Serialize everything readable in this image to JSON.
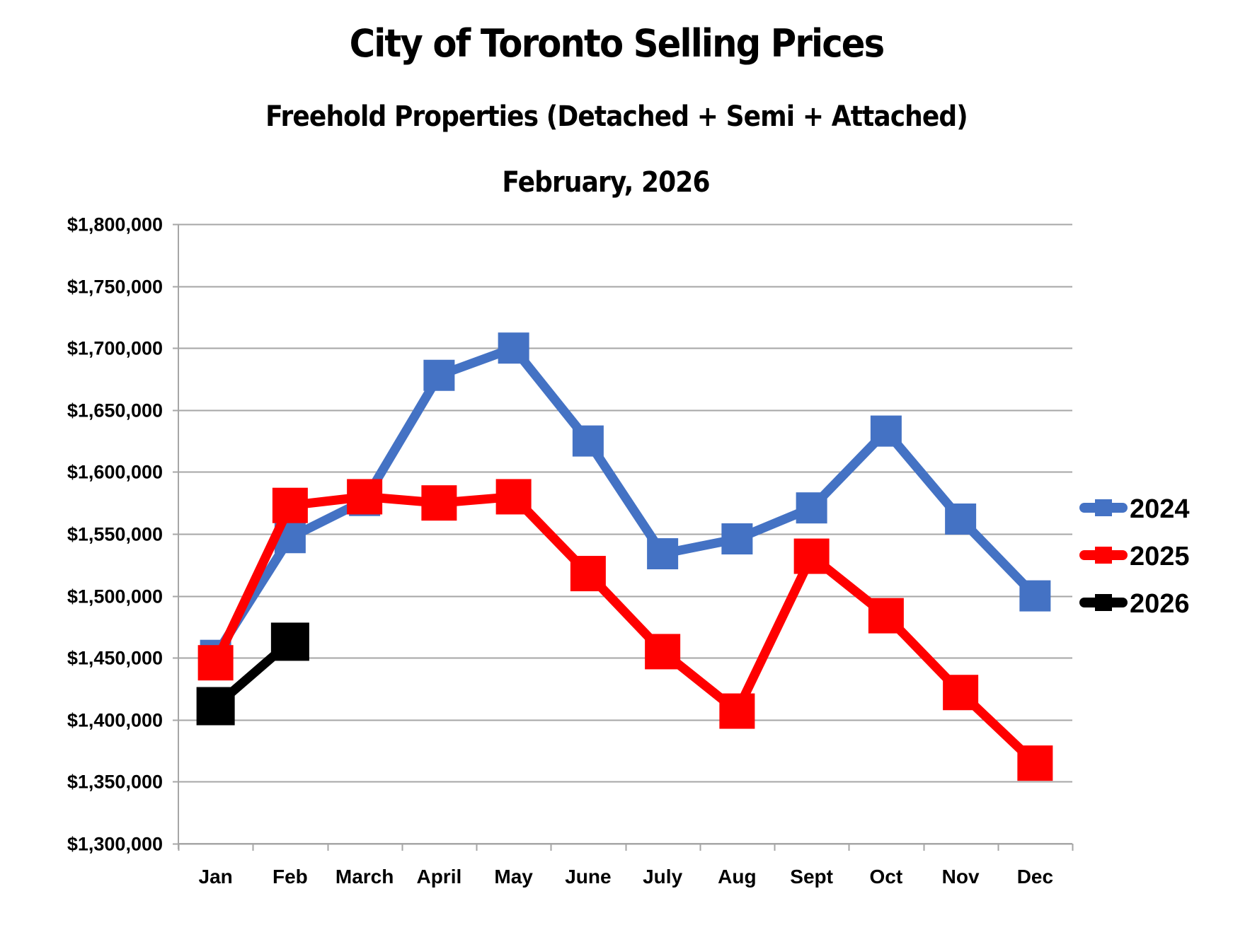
{
  "chart_data": {
    "type": "line",
    "title": "City of Toronto Selling Prices",
    "subtitle": "Freehold Properties (Detached + Semi + Attached)",
    "date_label": "February, 2026",
    "xlabel": "",
    "ylabel": "",
    "categories": [
      "Jan",
      "Feb",
      "March",
      "April",
      "May",
      "June",
      "July",
      "Aug",
      "Sept",
      "Oct",
      "Nov",
      "Dec"
    ],
    "ylim": [
      1300000,
      1800000
    ],
    "yticks": [
      1300000,
      1350000,
      1400000,
      1450000,
      1500000,
      1550000,
      1600000,
      1650000,
      1700000,
      1750000,
      1800000
    ],
    "ytick_labels": [
      "$1,300,000",
      "$1,350,000",
      "$1,400,000",
      "$1,450,000",
      "$1,500,000",
      "$1,550,000",
      "$1,600,000",
      "$1,650,000",
      "$1,700,000",
      "$1,750,000",
      "$1,800,000"
    ],
    "grid": true,
    "legend_position": "right",
    "series": [
      {
        "name": "2024",
        "color": "#4472C4",
        "values": [
          1452000,
          1547000,
          1577000,
          1678000,
          1700000,
          1625000,
          1534000,
          1546000,
          1571000,
          1633000,
          1562000,
          1500000
        ]
      },
      {
        "name": "2025",
        "color": "#FF0000",
        "values": [
          1446000,
          1573000,
          1580000,
          1575000,
          1580000,
          1518000,
          1455000,
          1407000,
          1532000,
          1484000,
          1422000,
          1365000
        ]
      },
      {
        "name": "2026",
        "color": "#000000",
        "values": [
          1411000,
          1463000,
          null,
          null,
          null,
          null,
          null,
          null,
          null,
          null,
          null,
          null
        ]
      }
    ]
  }
}
